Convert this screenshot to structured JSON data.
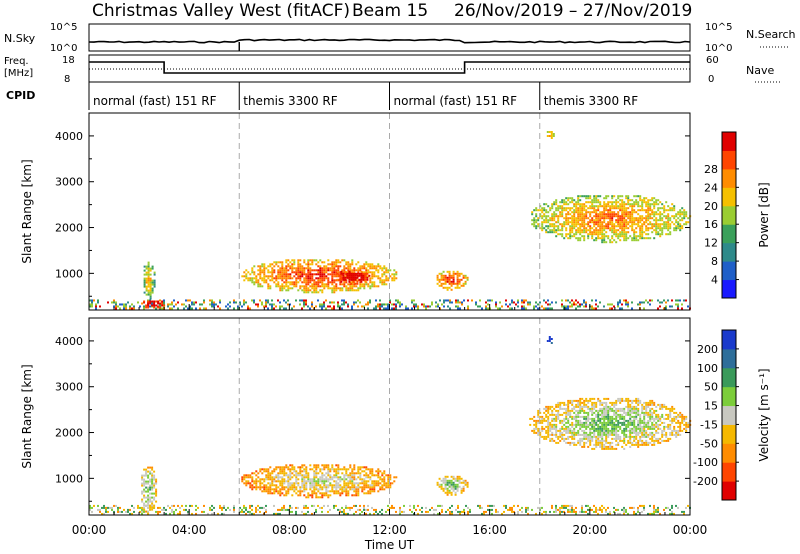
{
  "header": {
    "title": "Christmas Valley West (fitACF)",
    "beam": "Beam 15",
    "date_range": "26/Nov/2019 – 27/Nov/2019"
  },
  "top_panels": {
    "nsky": {
      "label": "N.Sky",
      "ticks": [
        "10^5",
        "10^0"
      ],
      "right_label": "N.Search",
      "right_ticks": [
        "10^5",
        "10^0"
      ]
    },
    "freq": {
      "label_line1": "Freq.",
      "label_line2": "[MHz]",
      "ticks": [
        "18",
        "8"
      ],
      "right_label": "Nave",
      "right_ticks": [
        "60",
        "0"
      ]
    },
    "cpid": {
      "label": "CPID",
      "segments": [
        {
          "name": "normal (fast) 151 RF",
          "start_hour": 0,
          "end_hour": 6
        },
        {
          "name": "themis 3300 RF",
          "start_hour": 6,
          "end_hour": 12
        },
        {
          "name": "normal (fast) 151 RF",
          "start_hour": 12,
          "end_hour": 18
        },
        {
          "name": "themis 3300 RF",
          "start_hour": 18,
          "end_hour": 24
        }
      ]
    }
  },
  "chart_data": [
    {
      "type": "heatmap",
      "panel": "power",
      "ylabel": "Slant Range [km]",
      "ylim": [
        200,
        4500
      ],
      "yticks": [
        1000,
        2000,
        3000,
        4000
      ],
      "xlim_hours": [
        0,
        24
      ],
      "colorbar": {
        "label": "Power [dB]",
        "ticks": [
          "4",
          "8",
          "12",
          "16",
          "20",
          "24",
          "28"
        ],
        "colors": [
          "#1a1aff",
          "#1f5fc8",
          "#2e8a8a",
          "#3aa05a",
          "#9acd32",
          "#f5c000",
          "#ff8c00",
          "#ff4500",
          "#e00000"
        ]
      },
      "regions": [
        {
          "x0": 2.0,
          "x1": 3.0,
          "y0": 250,
          "y1": 450,
          "level": 8
        },
        {
          "x0": 2.1,
          "x1": 2.6,
          "y0": 450,
          "y1": 1300,
          "level": 4
        },
        {
          "x0": 6.0,
          "x1": 12.3,
          "y0": 600,
          "y1": 1350,
          "level": 6
        },
        {
          "x0": 9.8,
          "x1": 11.2,
          "y0": 780,
          "y1": 1100,
          "level": 8
        },
        {
          "x0": 13.8,
          "x1": 15.1,
          "y0": 650,
          "y1": 1100,
          "level": 6
        },
        {
          "x0": 17.5,
          "x1": 24.0,
          "y0": 1700,
          "y1": 2750,
          "level": 5
        },
        {
          "x0": 18.2,
          "x1": 18.6,
          "y0": 3950,
          "y1": 4150,
          "level": 5
        }
      ]
    },
    {
      "type": "heatmap",
      "panel": "velocity",
      "ylabel": "Slant Range [km]",
      "ylim": [
        200,
        4500
      ],
      "yticks": [
        1000,
        2000,
        3000,
        4000
      ],
      "xlim_hours": [
        0,
        24
      ],
      "xlabel": "Time UT",
      "xticks": [
        "00:00",
        "04:00",
        "08:00",
        "12:00",
        "16:00",
        "20:00",
        "00:00"
      ],
      "colorbar": {
        "label": "Velocity [m s⁻¹]",
        "ticks": [
          "-200",
          "-100",
          "-50",
          "-15",
          "15",
          "50",
          "100",
          "200"
        ],
        "colors": [
          "#e00000",
          "#ff4500",
          "#ff8c00",
          "#f5b800",
          "#c8c8c0",
          "#7ccd3a",
          "#3a9a5a",
          "#2e6e9a",
          "#1a3acc"
        ]
      },
      "regions": [
        {
          "x0": 2.0,
          "x1": 2.7,
          "y0": 250,
          "y1": 1300,
          "level": 4
        },
        {
          "x0": 6.0,
          "x1": 12.3,
          "y0": 600,
          "y1": 1350,
          "level": 3
        },
        {
          "x0": 13.8,
          "x1": 15.1,
          "y0": 650,
          "y1": 1100,
          "level": 4
        },
        {
          "x0": 17.5,
          "x1": 24.0,
          "y0": 1650,
          "y1": 2800,
          "level": 4
        },
        {
          "x0": 18.2,
          "x1": 18.6,
          "y0": 3950,
          "y1": 4150,
          "level": 8
        }
      ]
    }
  ]
}
